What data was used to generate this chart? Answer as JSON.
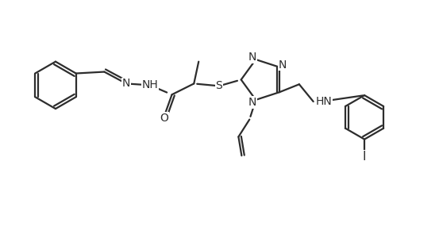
{
  "background_color": "#ffffff",
  "line_color": "#2d2d2d",
  "line_width": 1.6,
  "font_size": 10.0,
  "fig_width": 5.53,
  "fig_height": 2.95,
  "dpi": 100,
  "atoms": {
    "N_imine": "N",
    "NH_hydrazone": "NH",
    "O_carbonyl": "O",
    "S_thioether": "S",
    "N_triazole_1": "N",
    "N_triazole_2": "N",
    "N_triazole_4": "N",
    "HN_aniline": "HN",
    "I_iodo": "I"
  }
}
